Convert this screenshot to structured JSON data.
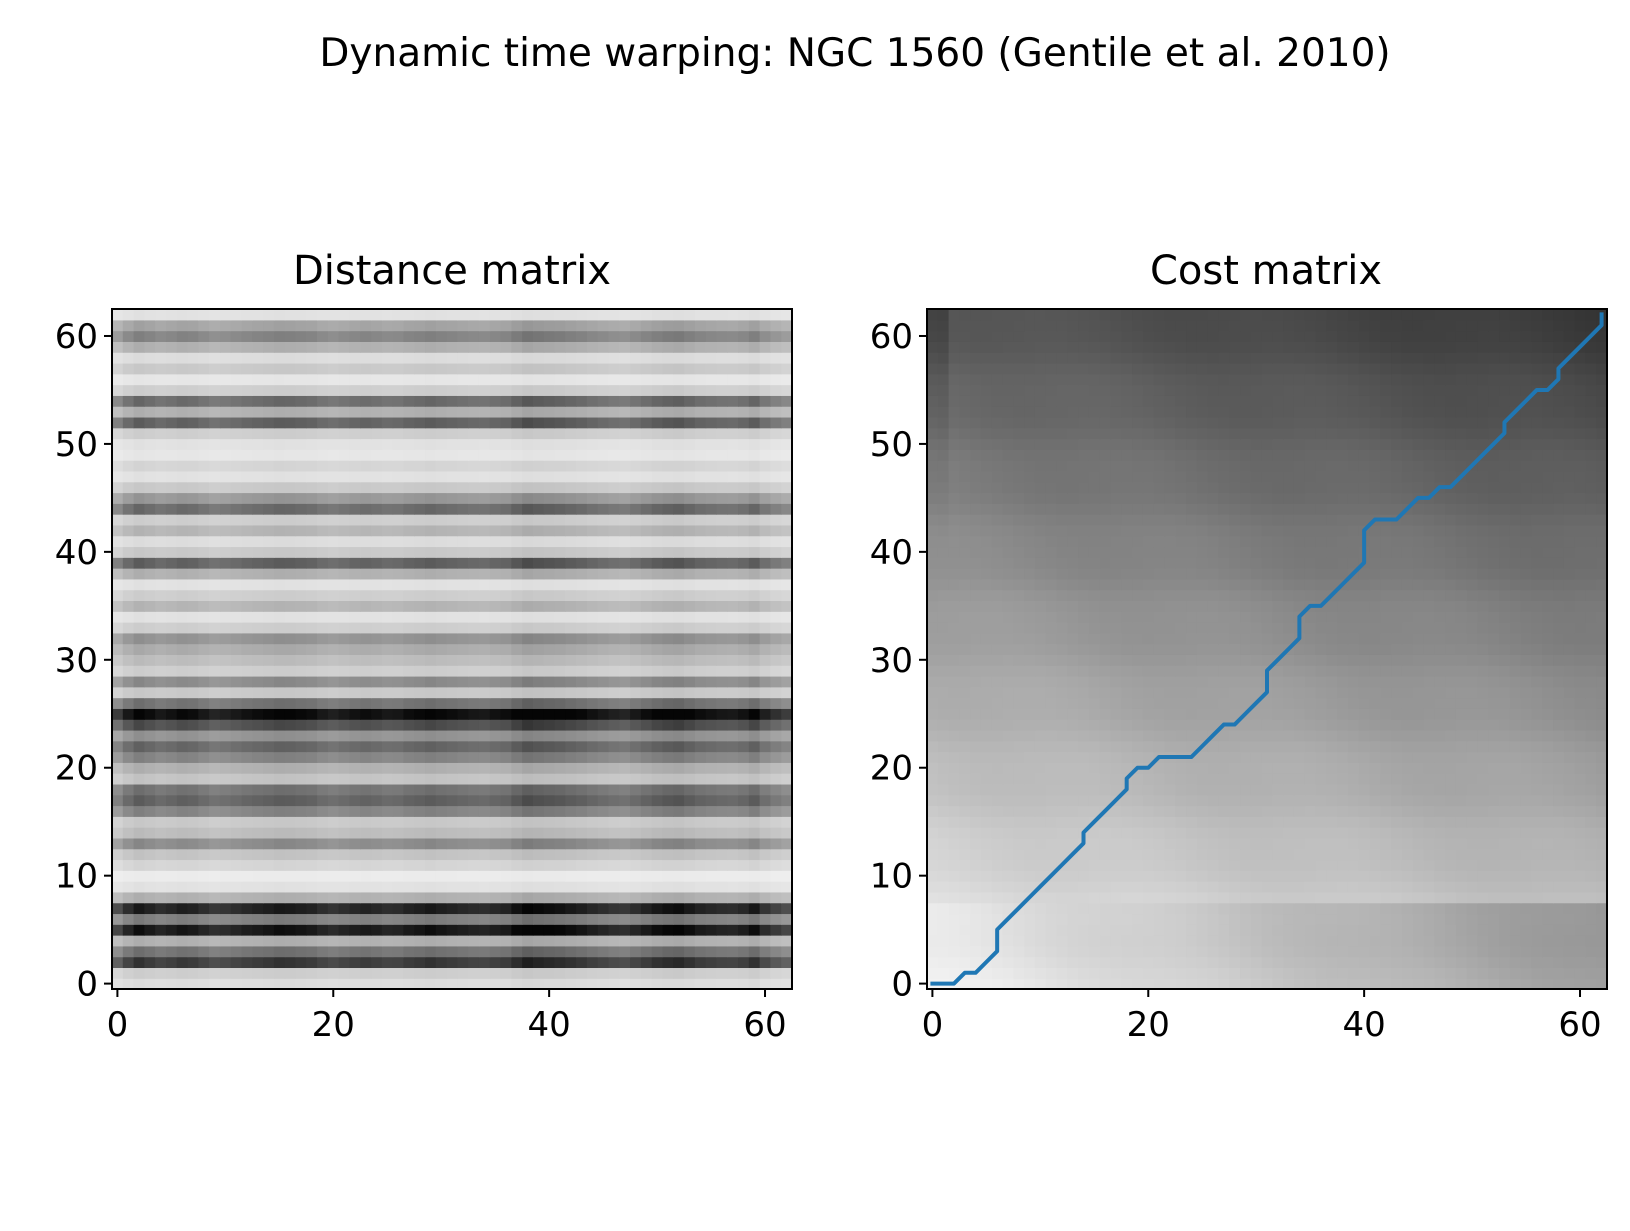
{
  "figure": {
    "title": "Dynamic time warping: NGC 1560 (Gentile et al. 2010)"
  },
  "chart_data": [
    {
      "type": "heatmap",
      "title": "Distance matrix",
      "xlabel": "",
      "ylabel": "",
      "xlim": [
        -0.5,
        62.5
      ],
      "ylim": [
        -0.5,
        62.5
      ],
      "x_ticks": [
        "0",
        "20",
        "40",
        "60"
      ],
      "y_ticks": [
        "0",
        "10",
        "20",
        "30",
        "40",
        "50",
        "60"
      ],
      "colormap": "gray_r",
      "grid": false,
      "size": [
        63,
        63
      ],
      "row_strength": [
        0.12,
        0.18,
        0.78,
        0.55,
        0.3,
        0.92,
        0.5,
        0.88,
        0.3,
        0.1,
        0.06,
        0.15,
        0.22,
        0.45,
        0.25,
        0.2,
        0.48,
        0.62,
        0.55,
        0.22,
        0.3,
        0.48,
        0.6,
        0.42,
        0.7,
        0.97,
        0.55,
        0.2,
        0.45,
        0.18,
        0.25,
        0.32,
        0.42,
        0.18,
        0.1,
        0.28,
        0.18,
        0.1,
        0.3,
        0.62,
        0.2,
        0.12,
        0.28,
        0.18,
        0.58,
        0.4,
        0.2,
        0.1,
        0.15,
        0.08,
        0.1,
        0.18,
        0.62,
        0.3,
        0.58,
        0.18,
        0.08,
        0.2,
        0.12,
        0.3,
        0.48,
        0.35,
        0.1
      ],
      "col_strength": [
        0.8,
        0.95,
        1.05,
        1.0,
        0.95,
        0.98,
        1.02,
        1.0,
        0.95,
        0.9,
        0.92,
        0.95,
        0.98,
        1.0,
        1.02,
        1.05,
        1.04,
        1.02,
        1.0,
        0.95,
        0.92,
        0.95,
        0.98,
        1.0,
        0.98,
        0.95,
        0.96,
        1.0,
        1.02,
        1.05,
        1.02,
        1.0,
        0.98,
        0.96,
        0.95,
        0.98,
        1.0,
        1.08,
        1.15,
        1.12,
        1.1,
        1.08,
        1.05,
        1.02,
        0.98,
        0.95,
        0.92,
        0.9,
        0.95,
        1.0,
        1.05,
        1.08,
        1.1,
        1.05,
        1.0,
        0.98,
        0.96,
        0.95,
        0.98,
        1.05,
        0.92,
        0.85,
        0.8
      ]
    },
    {
      "type": "heatmap",
      "title": "Cost matrix",
      "xlabel": "",
      "ylabel": "",
      "xlim": [
        -0.5,
        62.5
      ],
      "ylim": [
        -0.5,
        62.5
      ],
      "x_ticks": [
        "0",
        "20",
        "40",
        "60"
      ],
      "y_ticks": [
        "0",
        "10",
        "20",
        "30",
        "40",
        "50",
        "60"
      ],
      "colormap": "gray_r",
      "grid": false,
      "size": [
        63,
        63
      ],
      "series": [
        {
          "type": "line",
          "color": "#1f77b4",
          "x": [
            0,
            1,
            2,
            3,
            4,
            5,
            6,
            6,
            7,
            8,
            9,
            10,
            11,
            12,
            13,
            14,
            14,
            15,
            16,
            17,
            18,
            18,
            19,
            20,
            21,
            22,
            23,
            24,
            25,
            26,
            27,
            28,
            29,
            30,
            31,
            31,
            32,
            33,
            34,
            34,
            35,
            36,
            37,
            38,
            39,
            40,
            40,
            41,
            42,
            43,
            44,
            45,
            46,
            47,
            48,
            49,
            50,
            51,
            52,
            53,
            53,
            54,
            55,
            56,
            57,
            58,
            58,
            59,
            60,
            61,
            62,
            62
          ],
          "y": [
            0,
            0,
            0,
            1,
            1,
            2,
            3,
            5,
            6,
            7,
            8,
            9,
            10,
            11,
            12,
            13,
            14,
            15,
            16,
            17,
            18,
            19,
            20,
            20,
            21,
            21,
            21,
            21,
            22,
            23,
            24,
            24,
            25,
            26,
            27,
            29,
            30,
            31,
            32,
            34,
            35,
            35,
            36,
            37,
            38,
            39,
            42,
            43,
            43,
            43,
            44,
            45,
            45,
            46,
            46,
            47,
            48,
            49,
            50,
            51,
            52,
            53,
            54,
            55,
            55,
            56,
            57,
            58,
            59,
            60,
            61,
            62
          ]
        }
      ]
    }
  ]
}
